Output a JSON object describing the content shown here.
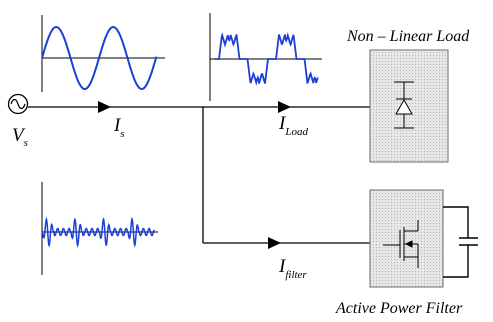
{
  "diagram": {
    "source_symbol": "V",
    "source_subscript": "s",
    "source_current_symbol": "I",
    "source_current_subscript": "s",
    "load_current_symbol": "I",
    "load_current_subscript": "Load",
    "filter_current_symbol": "I",
    "filter_current_subscript": "filter",
    "load_title": "Non – Linear Load",
    "filter_title": "Active Power Filter",
    "colors": {
      "waveform": "#1c3fd6",
      "wire": "#000000",
      "block_fill": "#e4e4e4",
      "block_border": "#6e6e6e"
    },
    "icons": {
      "source": "ac-source-icon",
      "load_device": "diode-icon",
      "filter_device": "mosfet-icon",
      "storage": "capacitor-icon"
    }
  }
}
